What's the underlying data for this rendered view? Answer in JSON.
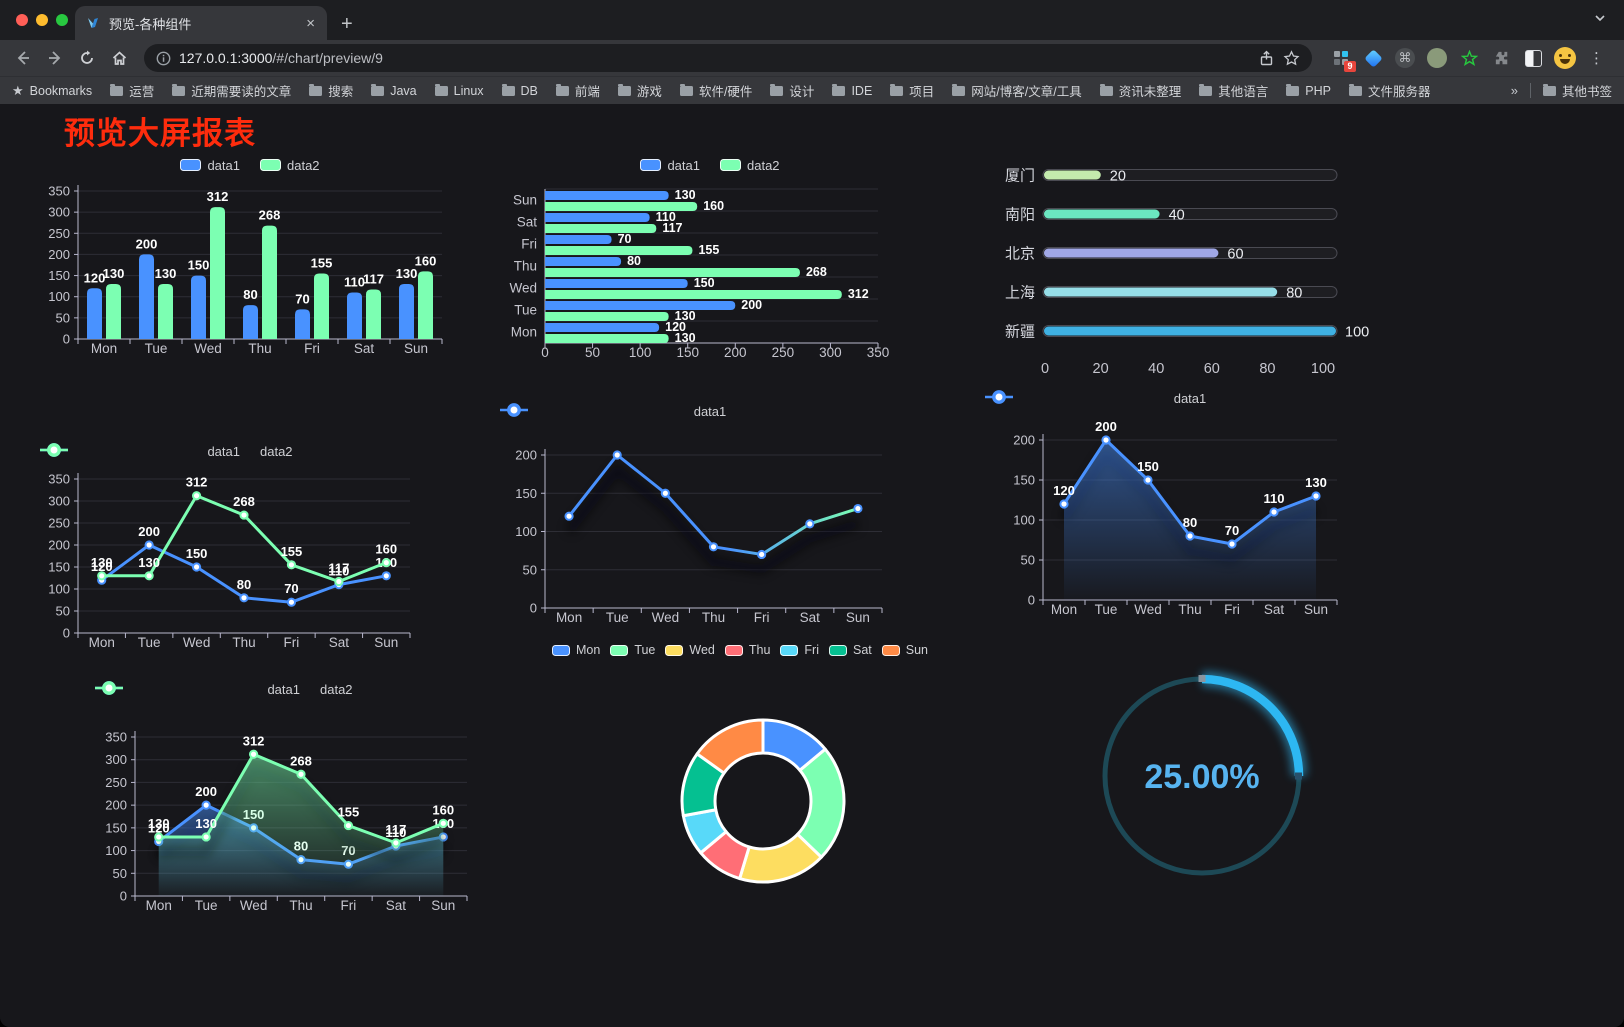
{
  "browser": {
    "tab_title": "预览-各种组件",
    "url_host": "127.0.0.1:3000",
    "url_path": "/#/chart/preview/9",
    "new_tab_label": "+",
    "close_tab_label": "×",
    "bookmarks_label": "Bookmarks",
    "bookmarks": [
      "运营",
      "近期需要读的文章",
      "搜索",
      "Java",
      "Linux",
      "DB",
      "前端",
      "游戏",
      "软件/硬件",
      "设计",
      "IDE",
      "项目",
      "网站/博客/文章/工具",
      "资讯未整理",
      "其他语言",
      "PHP",
      "文件服务器"
    ],
    "overflow_chevron": "»",
    "other_bookmarks": "其他书签",
    "extension_badge": "9",
    "menu_dots": "⋮"
  },
  "page": {
    "title": "预览大屏报表",
    "title_color": "#fe2c0d",
    "background": "#17171b"
  },
  "chart_data": [
    {
      "type": "bar",
      "categories": [
        "Mon",
        "Tue",
        "Wed",
        "Thu",
        "Fri",
        "Sat",
        "Sun"
      ],
      "series": [
        {
          "name": "data1",
          "color": "#4992ff",
          "values": [
            120,
            200,
            150,
            80,
            70,
            110,
            130
          ]
        },
        {
          "name": "data2",
          "color": "#7cffb2",
          "values": [
            130,
            130,
            312,
            268,
            155,
            117,
            160
          ]
        }
      ],
      "ylim": [
        0,
        350
      ],
      "ystep": 50,
      "grid": true,
      "legend_position": "top",
      "labels": true
    },
    {
      "type": "hbar",
      "categories": [
        "Mon",
        "Tue",
        "Wed",
        "Thu",
        "Fri",
        "Sat",
        "Sun"
      ],
      "display_order_top_to_bottom": [
        "Sun",
        "Sat",
        "Fri",
        "Thu",
        "Wed",
        "Tue",
        "Mon"
      ],
      "series": [
        {
          "name": "data1",
          "color": "#4992ff",
          "values": [
            120,
            200,
            150,
            80,
            70,
            110,
            130
          ]
        },
        {
          "name": "data2",
          "color": "#7cffb2",
          "values": [
            130,
            130,
            312,
            268,
            155,
            117,
            160
          ]
        }
      ],
      "xlim": [
        0,
        350
      ],
      "xstep": 50,
      "legend_position": "top",
      "labels": true
    },
    {
      "type": "progress",
      "rows": [
        {
          "label": "厦门",
          "value": 20,
          "color": "#c4ebad"
        },
        {
          "label": "南阳",
          "value": 40,
          "color": "#6be6c1"
        },
        {
          "label": "北京",
          "value": 60,
          "color": "#a0a7e6"
        },
        {
          "label": "上海",
          "value": 80,
          "color": "#96dee8"
        },
        {
          "label": "新疆",
          "value": 100,
          "color": "#3fb1e3"
        }
      ],
      "xticks": [
        0,
        20,
        40,
        60,
        80,
        100
      ],
      "xlim": [
        0,
        100
      ]
    },
    {
      "type": "line",
      "categories": [
        "Mon",
        "Tue",
        "Wed",
        "Thu",
        "Fri",
        "Sat",
        "Sun"
      ],
      "series": [
        {
          "name": "data1",
          "color": "#4992ff",
          "values": [
            120,
            200,
            150,
            80,
            70,
            110,
            130
          ]
        },
        {
          "name": "data2",
          "color": "#7cffb2",
          "values": [
            130,
            130,
            312,
            268,
            155,
            117,
            160
          ]
        }
      ],
      "ylim": [
        0,
        350
      ],
      "ystep": 50,
      "labels": true,
      "legend_position": "top"
    },
    {
      "type": "line",
      "categories": [
        "Mon",
        "Tue",
        "Wed",
        "Thu",
        "Fri",
        "Sat",
        "Sun"
      ],
      "series": [
        {
          "name": "data1",
          "color": "#4992ff",
          "values": [
            120,
            200,
            150,
            80,
            70,
            110,
            130
          ]
        }
      ],
      "gradient": [
        "#4992ff",
        "#7cffb2"
      ],
      "shadow": true,
      "ylim": [
        0,
        200
      ],
      "ystep": 50,
      "labels": false,
      "legend_position": "top"
    },
    {
      "type": "line",
      "area": true,
      "categories": [
        "Mon",
        "Tue",
        "Wed",
        "Thu",
        "Fri",
        "Sat",
        "Sun"
      ],
      "series": [
        {
          "name": "data1",
          "color": "#4992ff",
          "values": [
            120,
            200,
            150,
            80,
            70,
            110,
            130
          ]
        }
      ],
      "shadow": true,
      "ylim": [
        0,
        200
      ],
      "ystep": 50,
      "labels": true,
      "legend_position": "top"
    },
    {
      "type": "line",
      "area": true,
      "categories": [
        "Mon",
        "Tue",
        "Wed",
        "Thu",
        "Fri",
        "Sat",
        "Sun"
      ],
      "series": [
        {
          "name": "data1",
          "color": "#4992ff",
          "values": [
            120,
            200,
            150,
            80,
            70,
            110,
            130
          ]
        },
        {
          "name": "data2",
          "color": "#7cffb2",
          "values": [
            130,
            130,
            312,
            268,
            155,
            117,
            160
          ]
        }
      ],
      "shadow": true,
      "ylim": [
        0,
        350
      ],
      "ystep": 50,
      "labels": true,
      "legend_position": "top"
    },
    {
      "type": "pie",
      "categories": [
        "Mon",
        "Tue",
        "Wed",
        "Thu",
        "Fri",
        "Sat",
        "Sun"
      ],
      "values": [
        120,
        200,
        150,
        80,
        70,
        110,
        130
      ],
      "colors": [
        "#4992ff",
        "#7cffb2",
        "#fddd60",
        "#ff6e76",
        "#58d9f9",
        "#05c091",
        "#ff8a45"
      ],
      "donut": true,
      "border_color": "#ffffff",
      "legend_position": "top"
    },
    {
      "type": "gauge",
      "value": 25,
      "display": "25.00%",
      "color": "#2db7f2",
      "track_color": "#1d4956",
      "text_color": "#57b4f0"
    }
  ]
}
